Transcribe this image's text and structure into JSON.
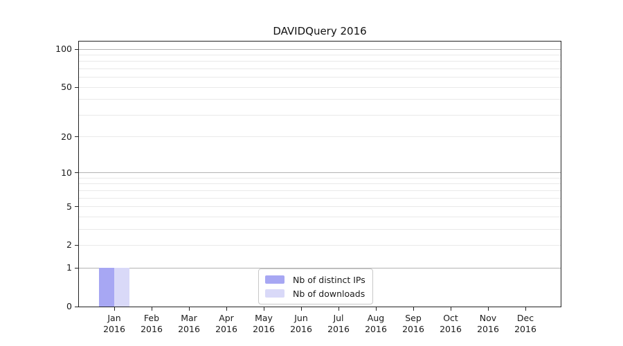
{
  "chart_data": {
    "type": "bar",
    "title": "DAVIDQuery 2016",
    "categories": [
      "Jan",
      "Feb",
      "Mar",
      "Apr",
      "May",
      "Jun",
      "Jul",
      "Aug",
      "Sep",
      "Oct",
      "Nov",
      "Dec"
    ],
    "category_year": "2016",
    "series": [
      {
        "name": "Nb of distinct IPs",
        "color": "#a7a7f3",
        "values": [
          1,
          0,
          0,
          0,
          0,
          0,
          0,
          0,
          0,
          0,
          0,
          0
        ]
      },
      {
        "name": "Nb of downloads",
        "color": "#d9d9f8",
        "values": [
          1,
          0,
          0,
          0,
          0,
          0,
          0,
          0,
          0,
          0,
          0,
          0
        ]
      }
    ],
    "yaxis": {
      "scale": "log1p",
      "ylim": [
        0,
        115
      ],
      "ticks": [
        0,
        1,
        2,
        5,
        10,
        20,
        50,
        100
      ],
      "major_gridlines": [
        1,
        10,
        100
      ],
      "minor_gridlines": [
        2,
        3,
        4,
        5,
        6,
        7,
        8,
        9,
        20,
        30,
        40,
        50,
        60,
        70,
        80,
        90
      ]
    },
    "xlabel": "",
    "ylabel": "",
    "legend": {
      "position": "lower center"
    },
    "colors": {
      "grid_major": "#b3b3b3",
      "grid_minor": "#e9e9e9",
      "spine": "#222222",
      "text": "#1a1a1a"
    }
  }
}
